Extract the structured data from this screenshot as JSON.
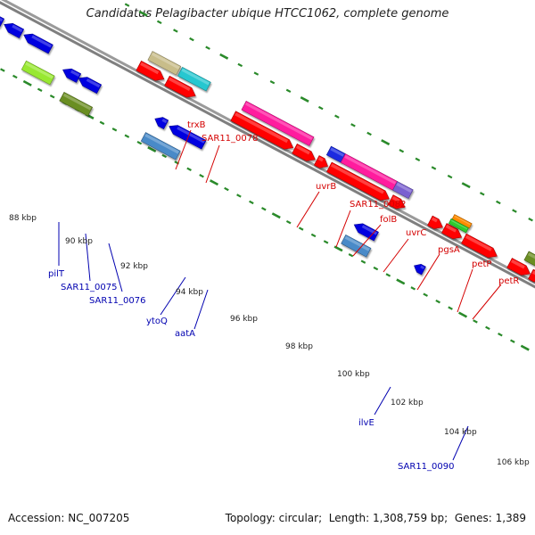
{
  "title": "Candidatus Pelagibacter ubique HTCC1062, complete genome",
  "footer": {
    "accession_label": "Accession:",
    "accession": "NC_007205",
    "topology_label": "Topology:",
    "topology": "circular",
    "length_label": "Length:",
    "length": "1,308,759 bp",
    "genes_label": "Genes:",
    "genes": "1,389"
  },
  "colors": {
    "backbone": "#8c8c8c",
    "tick": "#2a8a2a",
    "forward_label": "#d40000",
    "reverse_label": "#0000b0",
    "label_text": "#222222"
  },
  "kbp_labels": [
    "88 kbp",
    "90 kbp",
    "92 kbp",
    "94 kbp",
    "96 kbp",
    "98 kbp",
    "100 kbp",
    "102 kbp",
    "104 kbp",
    "106 kbp"
  ],
  "forward_genes": [
    {
      "name": "trxB",
      "color": "#c8bd8a"
    },
    {
      "name": "SAR11_0078",
      "color": "#26c7d0"
    },
    {
      "name": "uvrB",
      "color": "#ff1a9e"
    },
    {
      "name": "SAR11_0082",
      "color": "#1a2be0"
    },
    {
      "name": "folB",
      "color": "#ff1a9e"
    },
    {
      "name": "uvrC",
      "color": "#7a60d0"
    },
    {
      "name": "pgsA",
      "color": "#ff0000"
    },
    {
      "name": "petP",
      "color": "#ff8c00"
    },
    {
      "name": "petR",
      "color": "#ff0000"
    }
  ],
  "reverse_genes": [
    {
      "name": "pilT",
      "color": "#98e830"
    },
    {
      "name": "SAR11_0075",
      "color": "#0000e0"
    },
    {
      "name": "SAR11_0076",
      "color": "#6b8e23"
    },
    {
      "name": "ytoQ",
      "color": "#0000e0"
    },
    {
      "name": "aatA",
      "color": "#4a8ac8"
    },
    {
      "name": "ilvE",
      "color": "#4a8ac8"
    },
    {
      "name": "SAR11_0090",
      "color": "#0000e0"
    }
  ]
}
